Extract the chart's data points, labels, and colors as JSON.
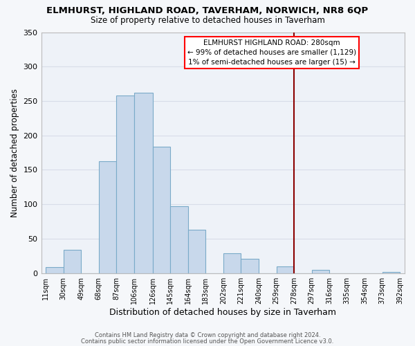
{
  "title": "ELMHURST, HIGHLAND ROAD, TAVERHAM, NORWICH, NR8 6QP",
  "subtitle": "Size of property relative to detached houses in Taverham",
  "xlabel": "Distribution of detached houses by size in Taverham",
  "ylabel": "Number of detached properties",
  "bar_color": "#c8d8eb",
  "bar_edge_color": "#7aaac8",
  "bins": [
    11,
    30,
    49,
    68,
    87,
    106,
    126,
    145,
    164,
    183,
    202,
    221,
    240,
    259,
    278,
    297,
    316,
    335,
    354,
    373,
    392
  ],
  "counts": [
    9,
    34,
    0,
    163,
    258,
    262,
    184,
    97,
    63,
    0,
    29,
    21,
    0,
    10,
    0,
    5,
    0,
    0,
    0,
    2
  ],
  "tick_labels": [
    "11sqm",
    "30sqm",
    "49sqm",
    "68sqm",
    "87sqm",
    "106sqm",
    "126sqm",
    "145sqm",
    "164sqm",
    "183sqm",
    "202sqm",
    "221sqm",
    "240sqm",
    "259sqm",
    "278sqm",
    "297sqm",
    "316sqm",
    "335sqm",
    "354sqm",
    "373sqm",
    "392sqm"
  ],
  "vline_x": 278,
  "vline_color": "#8b0000",
  "ylim": [
    0,
    350
  ],
  "yticks": [
    0,
    50,
    100,
    150,
    200,
    250,
    300,
    350
  ],
  "annotation_title": "ELMHURST HIGHLAND ROAD: 280sqm",
  "annotation_line1": "← 99% of detached houses are smaller (1,129)",
  "annotation_line2": "1% of semi-detached houses are larger (15) →",
  "footer1": "Contains HM Land Registry data © Crown copyright and database right 2024.",
  "footer2": "Contains public sector information licensed under the Open Government Licence v3.0.",
  "bg_color": "#f5f7fa",
  "plot_bg_color": "#eef2f8",
  "grid_color": "#d8dde8"
}
